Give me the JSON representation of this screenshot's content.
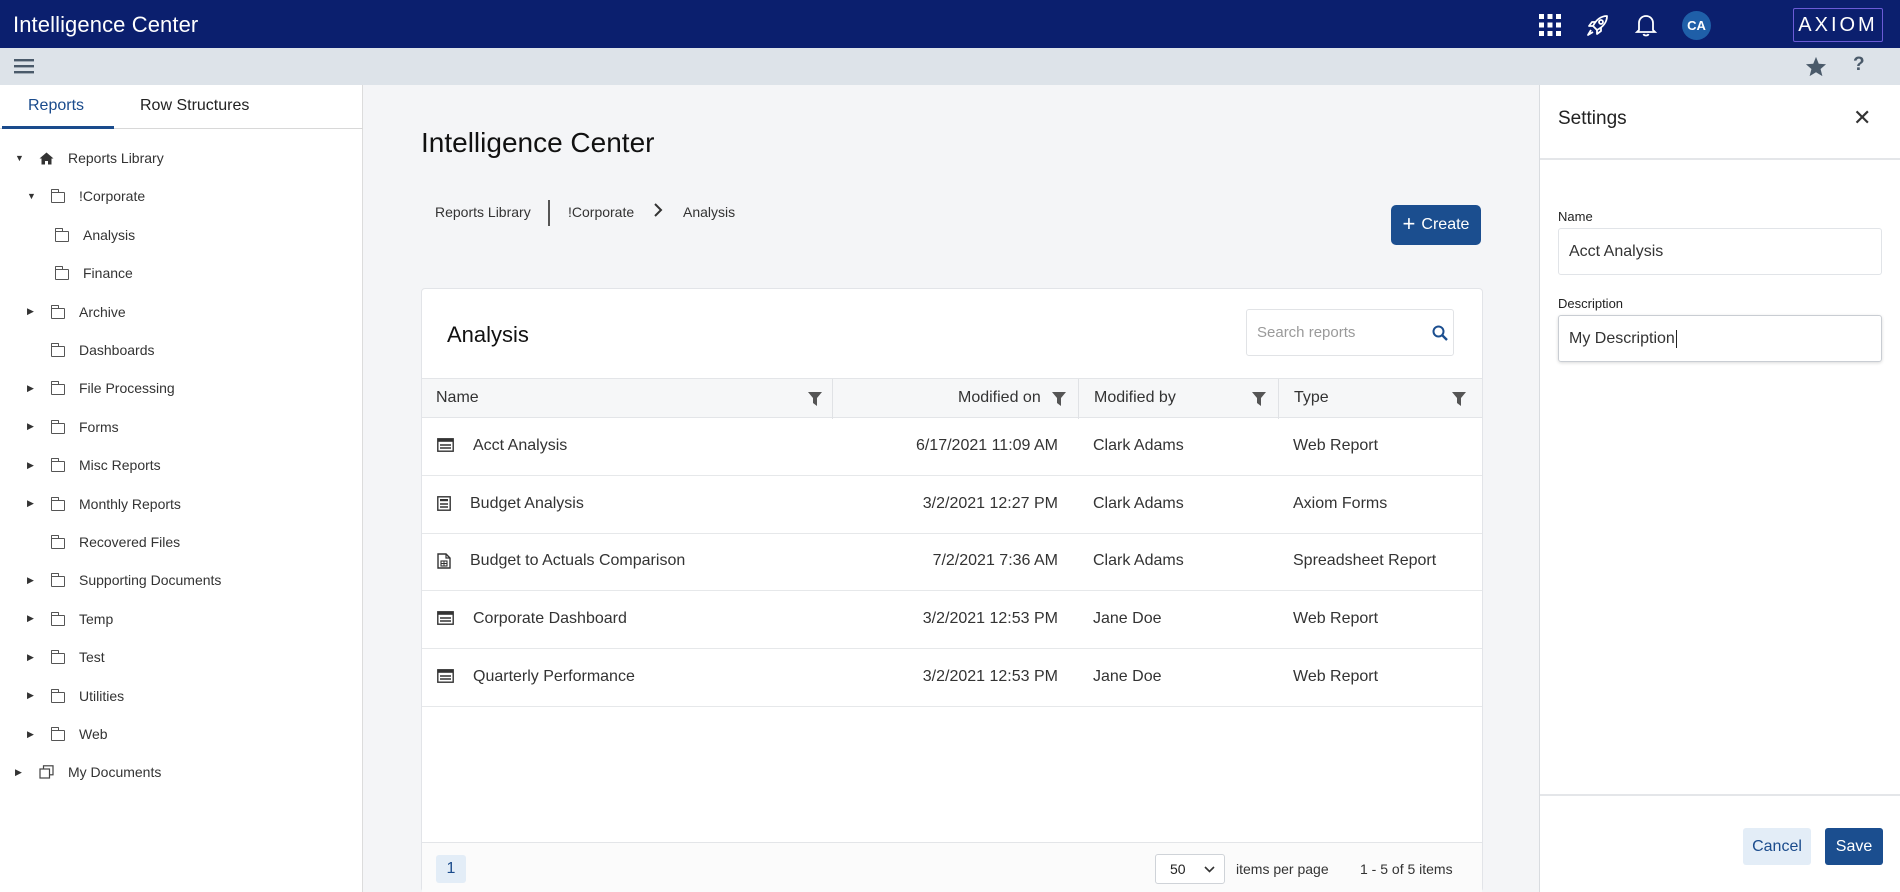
{
  "app": {
    "title": "Intelligence Center",
    "avatar_initials": "CA",
    "brand": "AXIOM"
  },
  "colors": {
    "topbar": "#0b1f6e",
    "accent": "#1b4e8f",
    "subbar": "#dde3e9"
  },
  "tabs": [
    {
      "label": "Reports",
      "active": true
    },
    {
      "label": "Row Structures",
      "active": false
    }
  ],
  "tree": [
    {
      "label": "Reports Library",
      "icon": "home-icon",
      "caret": "expanded"
    },
    {
      "label": "!Corporate",
      "icon": "folder-icon",
      "caret": "expanded"
    },
    {
      "label": "Analysis",
      "icon": "folder-icon",
      "caret": "none"
    },
    {
      "label": "Finance",
      "icon": "folder-icon",
      "caret": "none"
    },
    {
      "label": "Archive",
      "icon": "folder-icon",
      "caret": "collapsed"
    },
    {
      "label": "Dashboards",
      "icon": "folder-icon",
      "caret": "none"
    },
    {
      "label": "File Processing",
      "icon": "folder-icon",
      "caret": "collapsed"
    },
    {
      "label": "Forms",
      "icon": "folder-icon",
      "caret": "collapsed"
    },
    {
      "label": "Misc Reports",
      "icon": "folder-icon",
      "caret": "collapsed"
    },
    {
      "label": "Monthly Reports",
      "icon": "folder-icon",
      "caret": "collapsed"
    },
    {
      "label": "Recovered Files",
      "icon": "folder-icon",
      "caret": "none"
    },
    {
      "label": "Supporting Documents",
      "icon": "folder-icon",
      "caret": "collapsed"
    },
    {
      "label": "Temp",
      "icon": "folder-icon",
      "caret": "collapsed"
    },
    {
      "label": "Test",
      "icon": "folder-icon",
      "caret": "collapsed"
    },
    {
      "label": "Utilities",
      "icon": "folder-icon",
      "caret": "collapsed"
    },
    {
      "label": "Web",
      "icon": "folder-icon",
      "caret": "collapsed"
    },
    {
      "label": "My Documents",
      "icon": "documents-icon",
      "caret": "collapsed"
    }
  ],
  "main": {
    "title": "Intelligence Center",
    "breadcrumb": [
      "Reports Library",
      "!Corporate",
      "Analysis"
    ],
    "create_label": "Create",
    "card_title": "Analysis",
    "search_placeholder": "Search reports",
    "columns": [
      "Name",
      "Modified on",
      "Modified by",
      "Type"
    ],
    "rows": [
      {
        "name": "Acct Analysis",
        "modified_on": "6/17/2021 11:09 AM",
        "modified_by": "Clark Adams",
        "type": "Web Report",
        "icon": "web-report-icon"
      },
      {
        "name": "Budget Analysis",
        "modified_on": "3/2/2021 12:27 PM",
        "modified_by": "Clark Adams",
        "type": "Axiom Forms",
        "icon": "form-icon"
      },
      {
        "name": "Budget to Actuals Comparison",
        "modified_on": "7/2/2021 7:36 AM",
        "modified_by": "Clark Adams",
        "type": "Spreadsheet Report",
        "icon": "spreadsheet-icon"
      },
      {
        "name": "Corporate Dashboard",
        "modified_on": "3/2/2021 12:53 PM",
        "modified_by": "Jane Doe",
        "type": "Web Report",
        "icon": "web-report-icon"
      },
      {
        "name": "Quarterly Performance",
        "modified_on": "3/2/2021 12:53 PM",
        "modified_by": "Jane Doe",
        "type": "Web Report",
        "icon": "web-report-icon"
      }
    ],
    "pagination": {
      "page": "1",
      "per_page": "50",
      "per_page_label": "items per page",
      "summary": "1 - 5 of 5 items"
    }
  },
  "settings": {
    "title": "Settings",
    "name_label": "Name",
    "name_value": "Acct Analysis",
    "description_label": "Description",
    "description_value": "My Description",
    "cancel_label": "Cancel",
    "save_label": "Save"
  }
}
